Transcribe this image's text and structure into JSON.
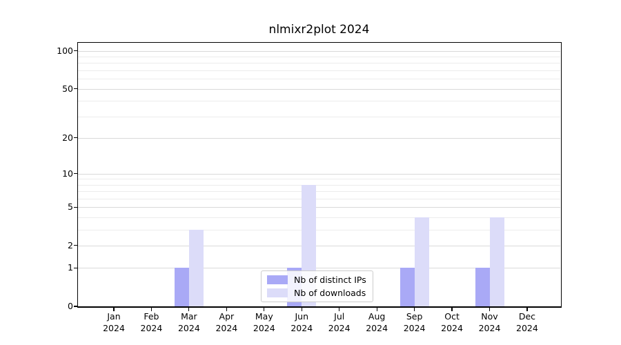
{
  "chart_data": {
    "type": "bar",
    "title": "nlmixr2plot 2024",
    "categories": [
      "Jan 2024",
      "Feb 2024",
      "Mar 2024",
      "Apr 2024",
      "May 2024",
      "Jun 2024",
      "Jul 2024",
      "Aug 2024",
      "Sep 2024",
      "Oct 2024",
      "Nov 2024",
      "Dec 2024"
    ],
    "series": [
      {
        "name": "Nb of distinct IPs",
        "color": "#a9a9f6",
        "values": [
          0,
          0,
          1,
          0,
          0,
          1,
          0,
          0,
          1,
          0,
          1,
          0
        ]
      },
      {
        "name": "Nb of downloads",
        "color": "#dcdcf9",
        "values": [
          0,
          0,
          3,
          0,
          0,
          8,
          0,
          0,
          4,
          0,
          4,
          0
        ]
      }
    ],
    "xlabel": "",
    "ylabel": "",
    "y_axis": {
      "scale": "log1p",
      "major_ticks": [
        0,
        1,
        2,
        5,
        10,
        20,
        50,
        100
      ],
      "minor_gridlines": [
        3,
        4,
        6,
        7,
        8,
        9,
        30,
        40,
        60,
        70,
        80,
        90
      ],
      "range": [
        0,
        116
      ]
    },
    "grid": "horizontal",
    "legend": {
      "position": "inside-bottom-center"
    },
    "colors": {
      "major_grid": "#d9d9d9",
      "minor_grid": "#ececec",
      "axis": "#000000",
      "background": "#ffffff",
      "text": "#000000"
    }
  }
}
